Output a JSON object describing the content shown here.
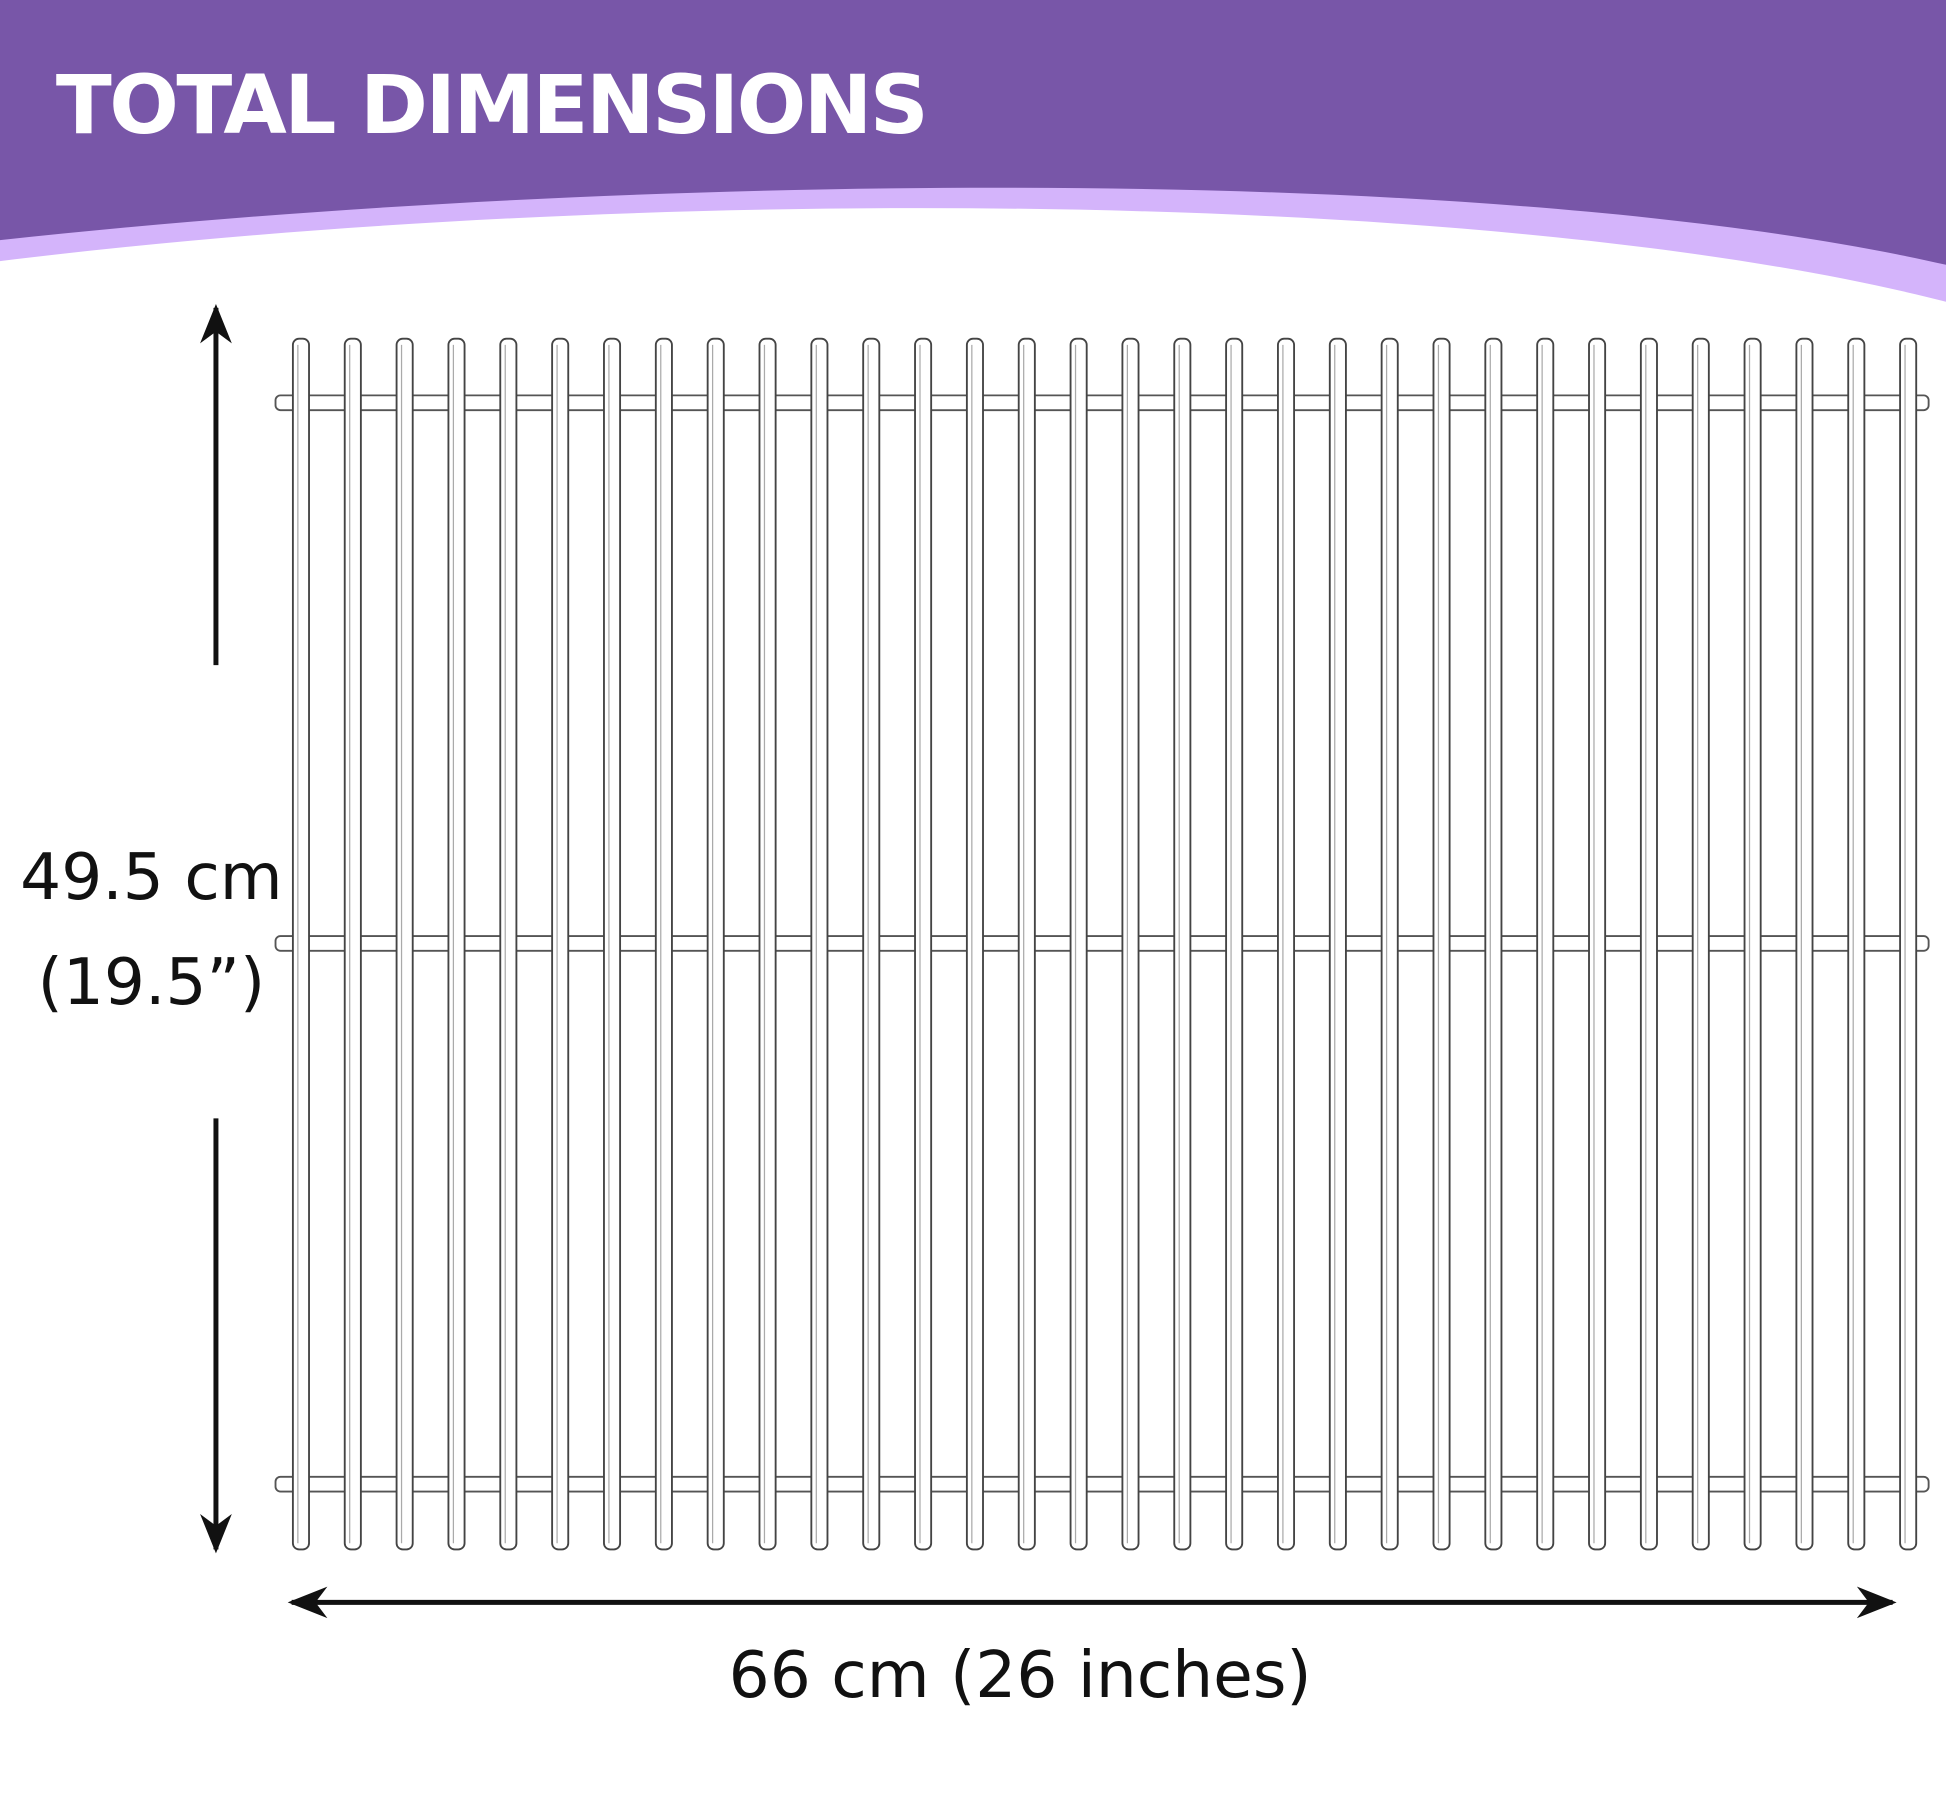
{
  "header": {
    "title": "TOTAL DIMENSIONS"
  },
  "dimensions": {
    "height_cm": "49.5 cm",
    "height_in": "(19.5”)",
    "width": "66 cm (26 inches)"
  }
}
